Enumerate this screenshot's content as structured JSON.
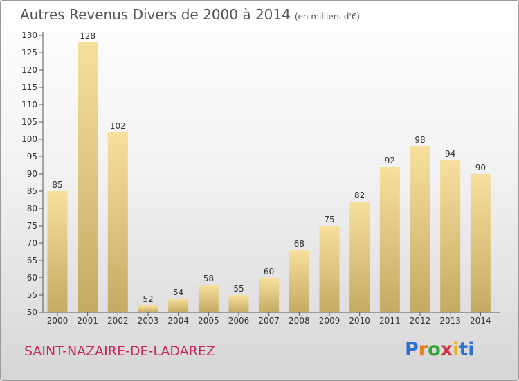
{
  "title": {
    "main": "Autres Revenus Divers de 2000 à 2014",
    "sub": "(en milliers d'€)"
  },
  "commune": "SAINT-NAZAIRE-DE-LADAREZ",
  "logo": {
    "text": "Proxiti",
    "letters": [
      "P",
      "r",
      "o",
      "x",
      "i",
      "t",
      "i"
    ]
  },
  "colors": {
    "bar_fill_top": "#f7df9e",
    "bar_fill_bottom": "#c5aa62",
    "commune": "#c8285a",
    "title": "#555555"
  },
  "chart_data": {
    "type": "bar",
    "categories": [
      "2000",
      "2001",
      "2002",
      "2003",
      "2004",
      "2005",
      "2006",
      "2007",
      "2008",
      "2009",
      "2010",
      "2011",
      "2012",
      "2013",
      "2014"
    ],
    "values": [
      85,
      128,
      102,
      52,
      54,
      58,
      55,
      60,
      68,
      75,
      82,
      92,
      98,
      94,
      90
    ],
    "data_labels": [
      "85",
      "128",
      "102",
      "52",
      "54",
      "58",
      "55",
      "60",
      "68",
      "75",
      "82",
      "92",
      "98",
      "94",
      "90"
    ],
    "title": "Autres Revenus Divers de 2000 à 2014",
    "xlabel": "",
    "ylabel": "",
    "ylim": [
      50,
      130
    ],
    "yticks": [
      "50",
      "55",
      "60",
      "65",
      "70",
      "75",
      "80",
      "85",
      "90",
      "95",
      "100",
      "105",
      "110",
      "115",
      "120",
      "125",
      "130"
    ],
    "grid": false
  }
}
